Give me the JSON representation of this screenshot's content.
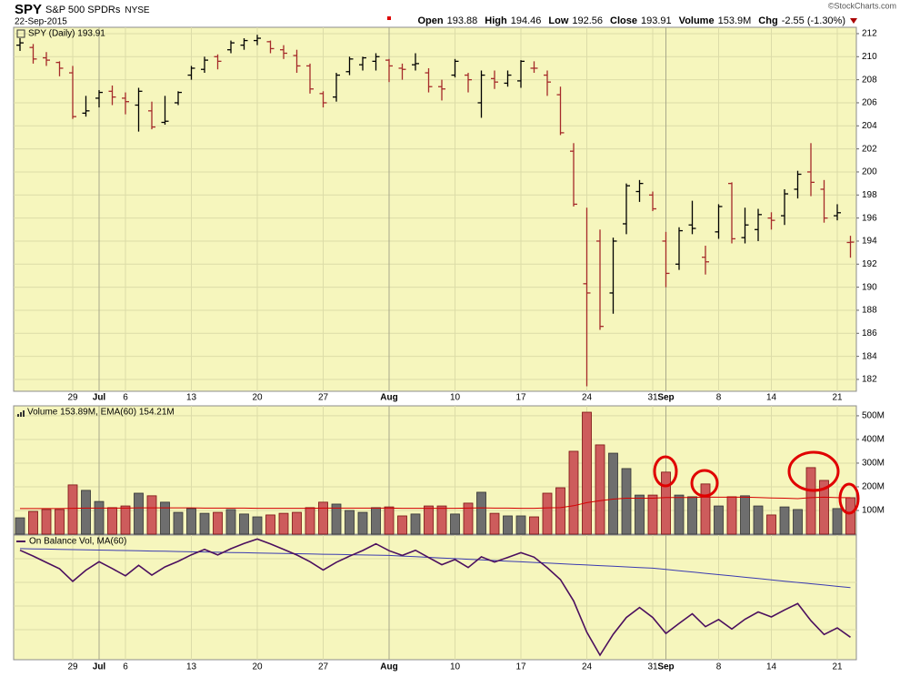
{
  "header": {
    "symbol": "SPY",
    "name": "S&P 500 SPDRs",
    "exchange": "NYSE",
    "date": "22-Sep-2015",
    "copyright": "©StockCharts.com",
    "stats": [
      {
        "label": "Open",
        "value": "193.88"
      },
      {
        "label": "High",
        "value": "194.46"
      },
      {
        "label": "Low",
        "value": "192.56"
      },
      {
        "label": "Close",
        "value": "193.91"
      },
      {
        "label": "Volume",
        "value": "153.9M"
      },
      {
        "label": "Chg",
        "value": "-2.55 (-1.30%)"
      }
    ]
  },
  "chart_data": [
    {
      "type": "ohlc",
      "legend": "SPY (Daily) 193.91",
      "up_color": "#000000",
      "down_color": "#a52a2a",
      "categories": [
        null,
        null,
        null,
        null,
        "29",
        null,
        "Jul",
        null,
        "6",
        null,
        null,
        null,
        null,
        "13",
        null,
        null,
        null,
        null,
        "20",
        null,
        null,
        null,
        null,
        "27",
        null,
        null,
        null,
        null,
        "Aug",
        null,
        null,
        null,
        null,
        "10",
        null,
        null,
        null,
        null,
        "17",
        null,
        null,
        null,
        null,
        "24",
        null,
        null,
        null,
        null,
        "31",
        "Sep",
        null,
        null,
        null,
        "8",
        null,
        null,
        null,
        "14",
        null,
        null,
        null,
        null,
        "21",
        null
      ],
      "open": [
        211.0,
        210.8,
        209.9,
        209.5,
        208.6,
        205.1,
        206.4,
        207.0,
        206.4,
        205.8,
        205.3,
        204.3,
        206.0,
        208.4,
        208.9,
        210.0,
        210.6,
        211.0,
        211.4,
        211.3,
        210.6,
        210.1,
        209.2,
        206.8,
        206.5,
        208.7,
        209.3,
        209.6,
        209.7,
        209.0,
        209.3,
        208.6,
        207.4,
        208.4,
        208.4,
        206.0,
        208.1,
        207.7,
        207.9,
        209.0,
        208.4,
        206.7,
        201.8,
        190.3,
        194.0,
        189.5,
        195.5,
        198.3,
        198.0,
        194.0,
        192.0,
        195.4,
        192.6,
        194.8,
        199.0,
        194.3,
        195.0,
        196.0,
        196.2,
        198.5,
        200.0,
        198.5,
        196.2,
        193.88
      ],
      "high": [
        211.6,
        211.1,
        210.4,
        209.6,
        209.2,
        206.6,
        207.1,
        207.5,
        206.9,
        207.3,
        206.1,
        206.6,
        207.0,
        209.2,
        210.0,
        210.2,
        211.4,
        211.6,
        211.9,
        211.4,
        211.0,
        210.6,
        209.4,
        207.0,
        208.6,
        210.0,
        210.0,
        210.3,
        209.8,
        209.4,
        210.3,
        209.0,
        208.0,
        209.8,
        208.6,
        208.8,
        208.8,
        208.8,
        209.7,
        209.6,
        208.8,
        207.4,
        202.5,
        196.9,
        195.0,
        194.3,
        199.0,
        199.3,
        198.3,
        194.8,
        195.2,
        197.5,
        193.6,
        197.2,
        199.1,
        196.9,
        196.8,
        196.5,
        198.5,
        200.1,
        202.5,
        199.3,
        197.2,
        194.46
      ],
      "low": [
        210.5,
        209.4,
        209.2,
        208.3,
        204.6,
        204.8,
        205.6,
        205.8,
        205.0,
        203.5,
        203.7,
        204.1,
        205.8,
        208.0,
        208.6,
        208.9,
        210.3,
        210.6,
        211.0,
        210.3,
        209.8,
        208.6,
        206.8,
        205.6,
        206.1,
        208.4,
        208.8,
        208.8,
        207.8,
        208.0,
        208.8,
        206.9,
        206.2,
        208.2,
        206.9,
        204.7,
        207.2,
        207.4,
        207.3,
        208.6,
        206.6,
        203.2,
        197.0,
        181.4,
        186.3,
        187.7,
        194.6,
        197.4,
        196.6,
        190.0,
        191.5,
        194.6,
        191.1,
        194.2,
        193.8,
        193.8,
        194.0,
        195.0,
        195.4,
        197.7,
        197.9,
        195.6,
        195.8,
        192.56
      ],
      "close": [
        211.2,
        209.8,
        209.7,
        209.0,
        204.8,
        205.3,
        206.9,
        206.5,
        206.1,
        207.0,
        203.9,
        204.4,
        206.9,
        209.0,
        209.7,
        209.6,
        211.2,
        211.4,
        211.6,
        210.7,
        210.3,
        209.2,
        207.2,
        206.0,
        208.4,
        209.8,
        209.9,
        210.0,
        209.2,
        208.9,
        209.4,
        207.4,
        207.2,
        209.6,
        208.0,
        208.4,
        207.8,
        208.4,
        209.6,
        209.0,
        207.8,
        203.4,
        197.2,
        189.5,
        186.6,
        194.0,
        198.8,
        199.0,
        196.8,
        191.2,
        194.9,
        195.1,
        192.2,
        197.0,
        194.2,
        195.4,
        196.3,
        195.8,
        198.1,
        199.8,
        199.1,
        196.0,
        196.46,
        193.91
      ],
      "ylim": [
        180.97,
        212.55
      ],
      "yticks": [
        182,
        184,
        186,
        188,
        190,
        192,
        194,
        196,
        198,
        200,
        202,
        204,
        206,
        208,
        210,
        212
      ],
      "grid": true
    },
    {
      "type": "volume",
      "legend": "Volume 153.89M, EMA(60) 154.21M",
      "up_color": "#6e6e6e",
      "down_color": "#cd5c5c",
      "series": [
        {
          "values": [
            69,
            96,
            104,
            104,
            208,
            185,
            138,
            112,
            119,
            173,
            162,
            135,
            92,
            108,
            88,
            92,
            104,
            85,
            73,
            81,
            88,
            92,
            112,
            135,
            127,
            100,
            92,
            112,
            115,
            77,
            85,
            119,
            119,
            85,
            131,
            177,
            88,
            77,
            77,
            73,
            173,
            196,
            350,
            515,
            377,
            342,
            277,
            165,
            165,
            262,
            165,
            158,
            212,
            119,
            158,
            162,
            119,
            81,
            115,
            104,
            281,
            227,
            108,
            153.89
          ]
        },
        {
          "color": "#d40000",
          "values": [
            108,
            108,
            108,
            108,
            109,
            110,
            110,
            110,
            110,
            111,
            111,
            111,
            111,
            111,
            110,
            110,
            110,
            110,
            109,
            109,
            109,
            109,
            109,
            110,
            110,
            110,
            110,
            110,
            110,
            109,
            109,
            109,
            109,
            109,
            110,
            111,
            110,
            110,
            109,
            109,
            111,
            112,
            120,
            133,
            141,
            148,
            152,
            152,
            152,
            155,
            155,
            155,
            157,
            156,
            156,
            156,
            155,
            153,
            152,
            150,
            154,
            156,
            154,
            154.21
          ]
        }
      ],
      "ylim": [
        0,
        542
      ],
      "yticks": [
        {
          "value": 100,
          "label": "100M"
        },
        {
          "value": 200,
          "label": "200M"
        },
        {
          "value": 300,
          "label": "300M"
        },
        {
          "value": 400,
          "label": "400M"
        },
        {
          "value": 500,
          "label": "500M"
        }
      ],
      "grid": true
    },
    {
      "type": "line",
      "legend": "On Balance Vol, MA(60)",
      "categories": [
        null,
        null,
        null,
        null,
        "29",
        null,
        "Jul",
        null,
        "6",
        null,
        null,
        null,
        null,
        "13",
        null,
        null,
        null,
        null,
        "20",
        null,
        null,
        null,
        null,
        "27",
        null,
        null,
        null,
        null,
        "Aug",
        null,
        null,
        null,
        null,
        "10",
        null,
        null,
        null,
        null,
        "17",
        null,
        null,
        null,
        null,
        "24",
        null,
        null,
        null,
        null,
        "31",
        "Sep",
        null,
        null,
        null,
        "8",
        null,
        null,
        null,
        "14",
        null,
        null,
        null,
        null,
        "21",
        null
      ],
      "series": [
        {
          "color": "#4b0f5e",
          "values": [
            0,
            -96,
            -200,
            -304,
            -512,
            -327,
            -189,
            -301,
            -420,
            -247,
            -409,
            -274,
            -182,
            -74,
            14,
            -78,
            26,
            111,
            184,
            103,
            15,
            -77,
            -189,
            -324,
            -197,
            -97,
            -5,
            107,
            -8,
            -85,
            0,
            -119,
            -238,
            -153,
            -284,
            -107,
            -195,
            -118,
            -41,
            -114,
            -287,
            -483,
            -833,
            -1348,
            -1725,
            -1383,
            -1106,
            -941,
            -1106,
            -1368,
            -1203,
            -1045,
            -1257,
            -1138,
            -1296,
            -1134,
            -1015,
            -1096,
            -981,
            -877,
            -1158,
            -1385,
            -1277,
            -1431
          ]
        },
        {
          "color": "#3b3bb0",
          "values": [
            27,
            23,
            19,
            15,
            11,
            7,
            3,
            -1,
            -5,
            -9,
            -13,
            -17,
            -21,
            -25,
            -29,
            -33,
            -37,
            -41,
            -45,
            -49,
            -53,
            -57,
            -61,
            -65,
            -69,
            -73,
            -77,
            -81,
            -85,
            -95,
            -106,
            -116,
            -127,
            -137,
            -148,
            -158,
            -169,
            -179,
            -190,
            -200,
            -211,
            -221,
            -232,
            -242,
            -253,
            -263,
            -274,
            -284,
            -294,
            -315,
            -337,
            -358,
            -380,
            -401,
            -422,
            -444,
            -465,
            -487,
            -508,
            -529,
            -551,
            -572,
            -594,
            -615
          ]
        }
      ],
      "ylim": [
        -1800,
        250
      ]
    }
  ]
}
